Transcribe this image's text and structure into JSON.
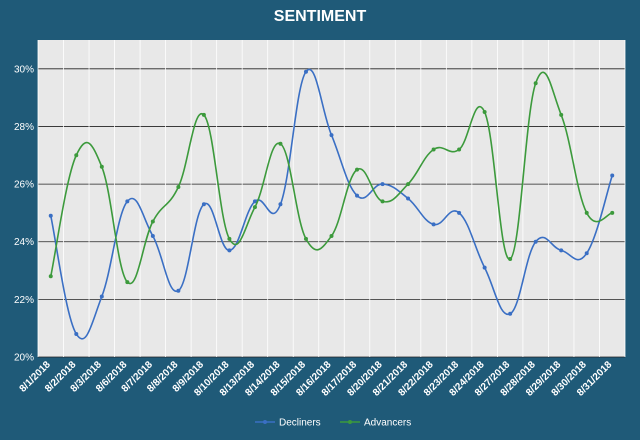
{
  "chart_data": {
    "type": "line",
    "title": "SENTIMENT",
    "xlabel": "",
    "ylabel": "",
    "ylim": [
      0.2,
      0.31
    ],
    "yticks": [
      0.2,
      0.22,
      0.24,
      0.26,
      0.28,
      0.3
    ],
    "ytick_labels": [
      "20%",
      "22%",
      "24%",
      "26%",
      "28%",
      "30%"
    ],
    "grid": true,
    "legend_position": "bottom",
    "background_color": "#1f5a78",
    "plot_background_color": "#e8e8e8",
    "categories": [
      "8/1/2018",
      "8/2/2018",
      "8/3/2018",
      "8/6/2018",
      "8/7/2018",
      "8/8/2018",
      "8/9/2018",
      "8/10/2018",
      "8/13/2018",
      "8/14/2018",
      "8/15/2018",
      "8/16/2018",
      "8/17/2018",
      "8/20/2018",
      "8/21/2018",
      "8/22/2018",
      "8/23/2018",
      "8/24/2018",
      "8/27/2018",
      "8/28/2018",
      "8/29/2018",
      "8/30/2018",
      "8/31/2018"
    ],
    "series": [
      {
        "name": "Decliners",
        "color": "#3a6fc4",
        "values": [
          0.249,
          0.208,
          0.221,
          0.254,
          0.242,
          0.223,
          0.253,
          0.237,
          0.254,
          0.253,
          0.299,
          0.277,
          0.256,
          0.26,
          0.255,
          0.246,
          0.25,
          0.231,
          0.215,
          0.24,
          0.237,
          0.236,
          0.263
        ]
      },
      {
        "name": "Advancers",
        "color": "#3c9a3c",
        "values": [
          0.228,
          0.27,
          0.266,
          0.226,
          0.247,
          0.259,
          0.284,
          0.241,
          0.252,
          0.274,
          0.241,
          0.242,
          0.265,
          0.254,
          0.26,
          0.272,
          0.272,
          0.285,
          0.234,
          0.295,
          0.284,
          0.25,
          0.25
        ]
      }
    ]
  }
}
